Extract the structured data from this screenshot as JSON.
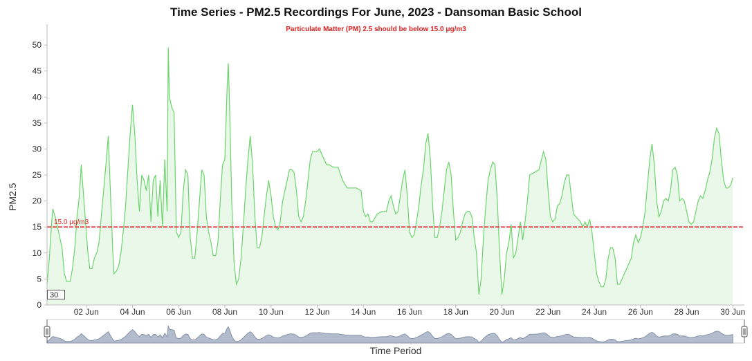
{
  "chart_data": {
    "type": "area",
    "title": "Time Series - PM2.5 Recordings For June, 2023 - Dansoman Basic School",
    "subtitle": "Particulate Matter (PM) 2.5 should be below 15.0 μg/m3",
    "xlabel": "Time Period",
    "ylabel": "PM2.5",
    "ylim": [
      0,
      54
    ],
    "yticks": [
      0,
      5,
      10,
      15,
      20,
      25,
      30,
      35,
      40,
      45,
      50
    ],
    "xlim": [
      0.3,
      30.5
    ],
    "xticks": [
      {
        "x": 2,
        "label": "02 Jun"
      },
      {
        "x": 4,
        "label": "04 Jun"
      },
      {
        "x": 6,
        "label": "06 Jun"
      },
      {
        "x": 8,
        "label": "08 Jun"
      },
      {
        "x": 10,
        "label": "10 Jun"
      },
      {
        "x": 12,
        "label": "12 Jun"
      },
      {
        "x": 14,
        "label": "14 Jun"
      },
      {
        "x": 16,
        "label": "16 Jun"
      },
      {
        "x": 18,
        "label": "18 Jun"
      },
      {
        "x": 20,
        "label": "20 Jun"
      },
      {
        "x": 22,
        "label": "22 Jun"
      },
      {
        "x": 24,
        "label": "24 Jun"
      },
      {
        "x": 26,
        "label": "26 Jun"
      },
      {
        "x": 28,
        "label": "28 Jun"
      },
      {
        "x": 30,
        "label": "30 Jun"
      }
    ],
    "threshold": {
      "value": 15.0,
      "label": "15.0 μg/m3",
      "color": "#e05050"
    },
    "zoom_label": "30",
    "line_color": "#6cd46c",
    "fill_color": "#e9f8e9",
    "grid": false,
    "points": [
      [
        0.3,
        4
      ],
      [
        0.4,
        9
      ],
      [
        0.5,
        16
      ],
      [
        0.55,
        18.5
      ],
      [
        0.65,
        17
      ],
      [
        0.8,
        14
      ],
      [
        0.95,
        11
      ],
      [
        1.05,
        6
      ],
      [
        1.15,
        4.5
      ],
      [
        1.3,
        4.5
      ],
      [
        1.4,
        7
      ],
      [
        1.5,
        11
      ],
      [
        1.6,
        17
      ],
      [
        1.7,
        21
      ],
      [
        1.78,
        27
      ],
      [
        1.85,
        23
      ],
      [
        1.95,
        17
      ],
      [
        2.05,
        11
      ],
      [
        2.15,
        7
      ],
      [
        2.25,
        7
      ],
      [
        2.35,
        9
      ],
      [
        2.45,
        10
      ],
      [
        2.55,
        12
      ],
      [
        2.65,
        17
      ],
      [
        2.75,
        22
      ],
      [
        2.85,
        27
      ],
      [
        2.95,
        32.5
      ],
      [
        3.05,
        21
      ],
      [
        3.15,
        10
      ],
      [
        3.2,
        6
      ],
      [
        3.3,
        6.5
      ],
      [
        3.4,
        7.5
      ],
      [
        3.5,
        10
      ],
      [
        3.6,
        14
      ],
      [
        3.7,
        19
      ],
      [
        3.8,
        26
      ],
      [
        3.9,
        33
      ],
      [
        4.0,
        38.5
      ],
      [
        4.1,
        33
      ],
      [
        4.2,
        24
      ],
      [
        4.3,
        18
      ],
      [
        4.4,
        25
      ],
      [
        4.5,
        24
      ],
      [
        4.6,
        22
      ],
      [
        4.7,
        25
      ],
      [
        4.8,
        16
      ],
      [
        4.9,
        24
      ],
      [
        5.0,
        25
      ],
      [
        5.1,
        17
      ],
      [
        5.2,
        24
      ],
      [
        5.3,
        15
      ],
      [
        5.4,
        28
      ],
      [
        5.5,
        18
      ],
      [
        5.55,
        49.5
      ],
      [
        5.6,
        40
      ],
      [
        5.7,
        38
      ],
      [
        5.8,
        37
      ],
      [
        5.9,
        14
      ],
      [
        6.0,
        13
      ],
      [
        6.1,
        14
      ],
      [
        6.2,
        22
      ],
      [
        6.3,
        26
      ],
      [
        6.4,
        25
      ],
      [
        6.5,
        13
      ],
      [
        6.6,
        9
      ],
      [
        6.7,
        9
      ],
      [
        6.8,
        14
      ],
      [
        6.9,
        20
      ],
      [
        7.0,
        26
      ],
      [
        7.1,
        25
      ],
      [
        7.2,
        17
      ],
      [
        7.3,
        14
      ],
      [
        7.4,
        12
      ],
      [
        7.5,
        9.5
      ],
      [
        7.6,
        9.5
      ],
      [
        7.7,
        12
      ],
      [
        7.8,
        20
      ],
      [
        7.9,
        27
      ],
      [
        8.0,
        28
      ],
      [
        8.1,
        42
      ],
      [
        8.15,
        46.5
      ],
      [
        8.2,
        39
      ],
      [
        8.3,
        20
      ],
      [
        8.4,
        8
      ],
      [
        8.5,
        4
      ],
      [
        8.6,
        5
      ],
      [
        8.7,
        9
      ],
      [
        8.8,
        15
      ],
      [
        8.9,
        22
      ],
      [
        9.0,
        28
      ],
      [
        9.1,
        32.5
      ],
      [
        9.2,
        27
      ],
      [
        9.3,
        17
      ],
      [
        9.4,
        11
      ],
      [
        9.5,
        11
      ],
      [
        9.6,
        13
      ],
      [
        9.7,
        17
      ],
      [
        9.8,
        21
      ],
      [
        9.9,
        24
      ],
      [
        10.0,
        21
      ],
      [
        10.1,
        17
      ],
      [
        10.2,
        15
      ],
      [
        10.3,
        14.5
      ],
      [
        10.4,
        16
      ],
      [
        10.5,
        20
      ],
      [
        10.6,
        22
      ],
      [
        10.7,
        24
      ],
      [
        10.8,
        26
      ],
      [
        10.9,
        26
      ],
      [
        11.0,
        25.5
      ],
      [
        11.1,
        22
      ],
      [
        11.2,
        17
      ],
      [
        11.3,
        16
      ],
      [
        11.4,
        17
      ],
      [
        11.5,
        20
      ],
      [
        11.6,
        24
      ],
      [
        11.7,
        28
      ],
      [
        11.8,
        29.5
      ],
      [
        11.9,
        29.5
      ],
      [
        12.0,
        29.5
      ],
      [
        12.1,
        30
      ],
      [
        12.2,
        29
      ],
      [
        12.3,
        28
      ],
      [
        12.4,
        27
      ],
      [
        12.5,
        27
      ],
      [
        12.7,
        26.5
      ],
      [
        12.9,
        26.5
      ],
      [
        13.1,
        24
      ],
      [
        13.3,
        22.5
      ],
      [
        13.5,
        22.5
      ],
      [
        13.7,
        22.5
      ],
      [
        13.9,
        22
      ],
      [
        14.0,
        18
      ],
      [
        14.1,
        17
      ],
      [
        14.2,
        17.5
      ],
      [
        14.3,
        16
      ],
      [
        14.4,
        16
      ],
      [
        14.6,
        17.5
      ],
      [
        14.8,
        18
      ],
      [
        15.0,
        18
      ],
      [
        15.1,
        20
      ],
      [
        15.2,
        21
      ],
      [
        15.3,
        19
      ],
      [
        15.4,
        17.5
      ],
      [
        15.5,
        18
      ],
      [
        15.6,
        21
      ],
      [
        15.7,
        24
      ],
      [
        15.8,
        26
      ],
      [
        15.9,
        21
      ],
      [
        16.0,
        14
      ],
      [
        16.1,
        13
      ],
      [
        16.2,
        13.5
      ],
      [
        16.3,
        16
      ],
      [
        16.4,
        19
      ],
      [
        16.5,
        23
      ],
      [
        16.6,
        26
      ],
      [
        16.7,
        31
      ],
      [
        16.8,
        33
      ],
      [
        16.9,
        28
      ],
      [
        17.0,
        19
      ],
      [
        17.1,
        13
      ],
      [
        17.2,
        13
      ],
      [
        17.3,
        15
      ],
      [
        17.4,
        18
      ],
      [
        17.5,
        22
      ],
      [
        17.6,
        26
      ],
      [
        17.7,
        27.5
      ],
      [
        17.8,
        25
      ],
      [
        17.9,
        18
      ],
      [
        18.0,
        12.5
      ],
      [
        18.1,
        13
      ],
      [
        18.2,
        14
      ],
      [
        18.3,
        16
      ],
      [
        18.4,
        17.5
      ],
      [
        18.5,
        18
      ],
      [
        18.6,
        18
      ],
      [
        18.7,
        17
      ],
      [
        18.8,
        13
      ],
      [
        18.9,
        10
      ],
      [
        19.0,
        2
      ],
      [
        19.1,
        5
      ],
      [
        19.2,
        13
      ],
      [
        19.3,
        19
      ],
      [
        19.4,
        24
      ],
      [
        19.5,
        26
      ],
      [
        19.6,
        27.5
      ],
      [
        19.7,
        27
      ],
      [
        19.8,
        20
      ],
      [
        19.9,
        10
      ],
      [
        20.0,
        2
      ],
      [
        20.1,
        5
      ],
      [
        20.2,
        10
      ],
      [
        20.3,
        12
      ],
      [
        20.4,
        15.5
      ],
      [
        20.5,
        9
      ],
      [
        20.6,
        10
      ],
      [
        20.7,
        13
      ],
      [
        20.8,
        16
      ],
      [
        20.9,
        12.5
      ],
      [
        21.0,
        16
      ],
      [
        21.1,
        20
      ],
      [
        21.2,
        25
      ],
      [
        21.4,
        25.5
      ],
      [
        21.6,
        26
      ],
      [
        21.8,
        29.5
      ],
      [
        21.9,
        28
      ],
      [
        22.0,
        22
      ],
      [
        22.1,
        17
      ],
      [
        22.2,
        16
      ],
      [
        22.3,
        16.5
      ],
      [
        22.4,
        19
      ],
      [
        22.5,
        19.5
      ],
      [
        22.6,
        21
      ],
      [
        22.7,
        23.5
      ],
      [
        22.8,
        25
      ],
      [
        22.9,
        25
      ],
      [
        23.0,
        21
      ],
      [
        23.1,
        17.5
      ],
      [
        23.2,
        17
      ],
      [
        23.3,
        16.5
      ],
      [
        23.4,
        16
      ],
      [
        23.5,
        15
      ],
      [
        23.6,
        16
      ],
      [
        23.7,
        15
      ],
      [
        23.8,
        16.5
      ],
      [
        23.9,
        14
      ],
      [
        24.0,
        10
      ],
      [
        24.1,
        6
      ],
      [
        24.2,
        4.5
      ],
      [
        24.3,
        3.5
      ],
      [
        24.4,
        3.5
      ],
      [
        24.5,
        5
      ],
      [
        24.6,
        9
      ],
      [
        24.7,
        11
      ],
      [
        24.8,
        11
      ],
      [
        24.9,
        9
      ],
      [
        25.0,
        4
      ],
      [
        25.1,
        4
      ],
      [
        25.2,
        5
      ],
      [
        25.3,
        6
      ],
      [
        25.4,
        7
      ],
      [
        25.5,
        8
      ],
      [
        25.6,
        9
      ],
      [
        25.7,
        12
      ],
      [
        25.8,
        13.5
      ],
      [
        25.9,
        12
      ],
      [
        26.0,
        13
      ],
      [
        26.1,
        15
      ],
      [
        26.2,
        18
      ],
      [
        26.3,
        23
      ],
      [
        26.4,
        28
      ],
      [
        26.5,
        31
      ],
      [
        26.6,
        27
      ],
      [
        26.7,
        20
      ],
      [
        26.8,
        17
      ],
      [
        26.9,
        18
      ],
      [
        27.0,
        20
      ],
      [
        27.1,
        20.5
      ],
      [
        27.2,
        20
      ],
      [
        27.3,
        22
      ],
      [
        27.4,
        26
      ],
      [
        27.5,
        26.5
      ],
      [
        27.6,
        25
      ],
      [
        27.7,
        20
      ],
      [
        27.8,
        20.5
      ],
      [
        27.9,
        20
      ],
      [
        28.0,
        18
      ],
      [
        28.1,
        16
      ],
      [
        28.2,
        15.5
      ],
      [
        28.3,
        16
      ],
      [
        28.4,
        18
      ],
      [
        28.5,
        20
      ],
      [
        28.6,
        21
      ],
      [
        28.7,
        20.5
      ],
      [
        28.8,
        22
      ],
      [
        28.9,
        24
      ],
      [
        29.0,
        25.5
      ],
      [
        29.1,
        28
      ],
      [
        29.2,
        32
      ],
      [
        29.3,
        34
      ],
      [
        29.4,
        33
      ],
      [
        29.5,
        28
      ],
      [
        29.6,
        24
      ],
      [
        29.7,
        22.5
      ],
      [
        29.8,
        22.5
      ],
      [
        29.9,
        23
      ],
      [
        30.0,
        24.5
      ]
    ]
  }
}
